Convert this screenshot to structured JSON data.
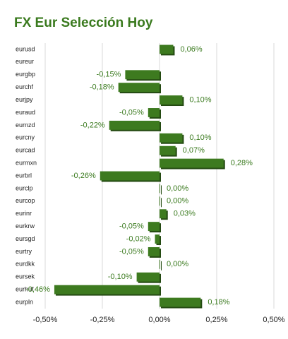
{
  "chart_data": {
    "type": "hbar",
    "title": "FX Eur Selección Hoy",
    "categories": [
      "eurusd",
      "eureur",
      "eurgbp",
      "eurchf",
      "eurjpy",
      "euraud",
      "eurnzd",
      "eurcny",
      "eurcad",
      "eurmxn",
      "eurbrl",
      "eurclp",
      "eurcop",
      "eurinr",
      "eurkrw",
      "eursgd",
      "eurtry",
      "eurdkk",
      "eursek",
      "eurhuf",
      "eurpln"
    ],
    "values": [
      0.06,
      null,
      -0.15,
      -0.18,
      0.1,
      -0.05,
      -0.22,
      0.1,
      0.07,
      0.28,
      -0.26,
      0.0,
      0.0,
      0.03,
      -0.05,
      -0.02,
      -0.05,
      0.0,
      -0.1,
      -0.46,
      0.18
    ],
    "value_labels": [
      "0,06%",
      null,
      "-0,15%",
      "-0,18%",
      "0,10%",
      "-0,05%",
      "-0,22%",
      "0,10%",
      "0,07%",
      "0,28%",
      "-0,26%",
      "0,00%",
      "0,00%",
      "0,03%",
      "-0,05%",
      "-0,02%",
      "-0,05%",
      "0,00%",
      "-0,10%",
      "-0,46%",
      "0,18%"
    ],
    "color": "#3d7a1f",
    "xlim": [
      -0.5,
      0.5
    ],
    "xticks": [
      {
        "value": -0.5,
        "label": "-0,50%"
      },
      {
        "value": -0.25,
        "label": "-0,25%"
      },
      {
        "value": 0,
        "label": "0,00%"
      },
      {
        "value": 0.25,
        "label": "0,25%"
      },
      {
        "value": 0.5,
        "label": "0,50%"
      }
    ],
    "grid": true
  }
}
